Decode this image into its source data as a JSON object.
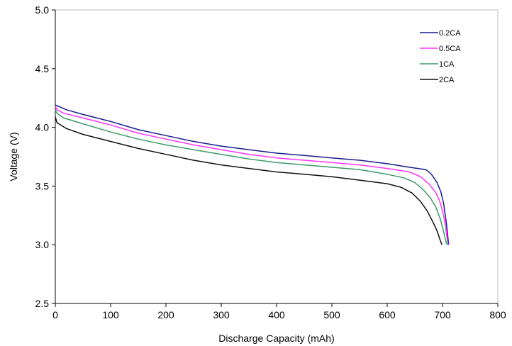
{
  "chart_data": {
    "type": "line",
    "title": "",
    "xlabel": "Discharge Capacity (mAh)",
    "ylabel": "Voltage (V)",
    "xlim": [
      0,
      800
    ],
    "ylim": [
      2.5,
      5.0
    ],
    "x_ticks": [
      "0",
      "100",
      "200",
      "300",
      "400",
      "500",
      "600",
      "700",
      "800"
    ],
    "y_ticks": [
      "2.5",
      "3.0",
      "3.5",
      "4.0",
      "4.5",
      "5.0"
    ],
    "grid": false,
    "legend_position": "top-right",
    "series": [
      {
        "name": "0.2CA",
        "color": "#1a1a8c",
        "x": [
          0,
          20,
          50,
          100,
          150,
          200,
          250,
          300,
          350,
          400,
          450,
          500,
          550,
          600,
          640,
          670,
          680,
          690,
          697,
          702,
          706,
          709,
          711
        ],
        "y": [
          4.19,
          4.15,
          4.11,
          4.05,
          3.98,
          3.93,
          3.88,
          3.84,
          3.81,
          3.78,
          3.76,
          3.74,
          3.72,
          3.69,
          3.66,
          3.64,
          3.6,
          3.53,
          3.45,
          3.35,
          3.22,
          3.1,
          3.0
        ]
      },
      {
        "name": "0.5CA",
        "color": "#ff33ff",
        "x": [
          0,
          3,
          15,
          50,
          100,
          150,
          200,
          250,
          300,
          350,
          400,
          450,
          500,
          550,
          600,
          640,
          660,
          675,
          687,
          695,
          701,
          705,
          708,
          710
        ],
        "y": [
          4.18,
          4.15,
          4.12,
          4.08,
          4.02,
          3.95,
          3.9,
          3.85,
          3.81,
          3.77,
          3.74,
          3.72,
          3.7,
          3.68,
          3.65,
          3.62,
          3.58,
          3.52,
          3.45,
          3.37,
          3.27,
          3.17,
          3.07,
          3.0
        ]
      },
      {
        "name": "1CA",
        "color": "#3c9a6a",
        "x": [
          0,
          3,
          15,
          50,
          100,
          150,
          200,
          250,
          300,
          350,
          400,
          450,
          500,
          550,
          600,
          630,
          650,
          665,
          678,
          688,
          696,
          701,
          705,
          708
        ],
        "y": [
          4.15,
          4.12,
          4.08,
          4.03,
          3.96,
          3.9,
          3.85,
          3.81,
          3.77,
          3.73,
          3.7,
          3.68,
          3.66,
          3.64,
          3.6,
          3.57,
          3.53,
          3.47,
          3.4,
          3.32,
          3.22,
          3.13,
          3.05,
          3.0
        ]
      },
      {
        "name": "2CA",
        "color": "#111111",
        "x": [
          0,
          3,
          20,
          50,
          100,
          150,
          200,
          250,
          300,
          350,
          400,
          450,
          500,
          550,
          600,
          625,
          645,
          660,
          672,
          682,
          690,
          695,
          699
        ],
        "y": [
          4.09,
          4.04,
          3.99,
          3.94,
          3.88,
          3.82,
          3.77,
          3.72,
          3.68,
          3.65,
          3.62,
          3.6,
          3.58,
          3.55,
          3.52,
          3.49,
          3.44,
          3.37,
          3.29,
          3.2,
          3.12,
          3.05,
          3.0
        ]
      }
    ]
  }
}
